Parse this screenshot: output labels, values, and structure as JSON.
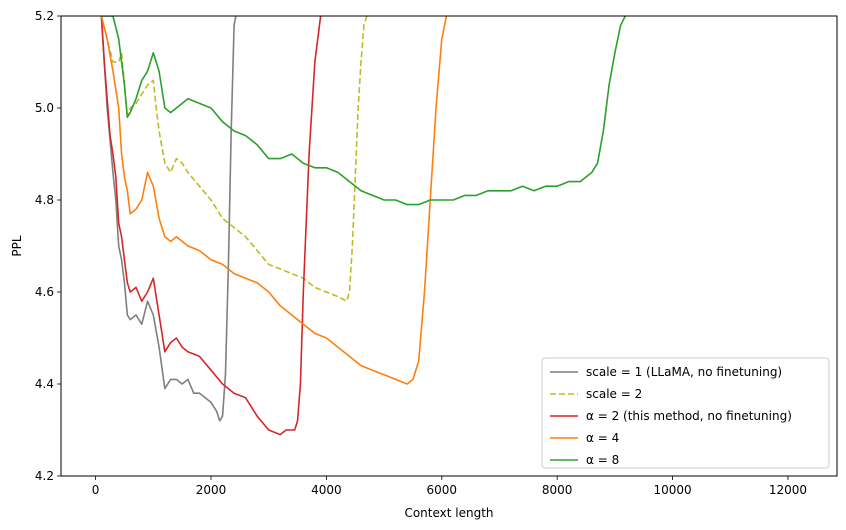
{
  "chart_data": {
    "type": "line",
    "title": "",
    "xlabel": "Context length",
    "ylabel": "PPL",
    "xlim": [
      -600,
      12850
    ],
    "ylim": [
      4.2,
      5.2
    ],
    "xticks": [
      0,
      2000,
      4000,
      6000,
      8000,
      10000,
      12000
    ],
    "yticks": [
      4.2,
      4.4,
      4.6,
      4.8,
      5.0,
      5.2
    ],
    "xtick_labels": [
      "0",
      "2000",
      "4000",
      "6000",
      "8000",
      "10000",
      "12000"
    ],
    "ytick_labels": [
      "4.2",
      "4.4",
      "4.6",
      "4.8",
      "5.0",
      "5.2"
    ],
    "grid": false,
    "legend_position": "lower-right",
    "series": [
      {
        "name": "scale = 1 (LLaMA, no finetuning)",
        "color": "#7f7f7f",
        "dash": "solid",
        "x": [
          100,
          150,
          200,
          250,
          300,
          350,
          400,
          450,
          500,
          550,
          600,
          700,
          800,
          900,
          1000,
          1100,
          1200,
          1300,
          1400,
          1500,
          1600,
          1700,
          1800,
          1900,
          2000,
          2100,
          2150,
          2200,
          2250,
          2300,
          2350,
          2400,
          2430
        ],
        "y": [
          5.2,
          5.1,
          5.0,
          4.93,
          4.86,
          4.8,
          4.7,
          4.67,
          4.62,
          4.55,
          4.54,
          4.55,
          4.53,
          4.58,
          4.55,
          4.48,
          4.39,
          4.41,
          4.41,
          4.4,
          4.41,
          4.38,
          4.38,
          4.37,
          4.36,
          4.34,
          4.32,
          4.33,
          4.42,
          4.65,
          4.95,
          5.18,
          5.2
        ]
      },
      {
        "name": "scale = 2",
        "color": "#bcbd22",
        "dash": "dashed",
        "x": [
          100,
          200,
          300,
          400,
          450,
          500,
          550,
          600,
          700,
          800,
          900,
          1000,
          1050,
          1100,
          1200,
          1300,
          1400,
          1500,
          1600,
          1800,
          2000,
          2200,
          2400,
          2600,
          2800,
          3000,
          3200,
          3400,
          3600,
          3800,
          4000,
          4200,
          4350,
          4400,
          4450,
          4500,
          4550,
          4600,
          4650,
          4700
        ],
        "y": [
          5.2,
          5.15,
          5.1,
          5.1,
          5.12,
          5.05,
          4.98,
          5.0,
          5.01,
          5.03,
          5.05,
          5.06,
          5.0,
          4.95,
          4.88,
          4.86,
          4.89,
          4.88,
          4.86,
          4.83,
          4.8,
          4.76,
          4.74,
          4.72,
          4.69,
          4.66,
          4.65,
          4.64,
          4.63,
          4.61,
          4.6,
          4.59,
          4.58,
          4.6,
          4.7,
          4.85,
          5.0,
          5.1,
          5.18,
          5.2
        ]
      },
      {
        "name": "α = 2 (this method, no finetuning)",
        "color": "#d62728",
        "dash": "solid",
        "x": [
          100,
          150,
          200,
          250,
          300,
          350,
          400,
          450,
          500,
          550,
          600,
          700,
          800,
          900,
          1000,
          1100,
          1200,
          1300,
          1400,
          1500,
          1600,
          1800,
          2000,
          2200,
          2400,
          2600,
          2800,
          3000,
          3200,
          3300,
          3400,
          3450,
          3500,
          3550,
          3600,
          3700,
          3800,
          3900
        ],
        "y": [
          5.2,
          5.1,
          5.02,
          4.94,
          4.9,
          4.85,
          4.75,
          4.72,
          4.67,
          4.62,
          4.6,
          4.61,
          4.58,
          4.6,
          4.63,
          4.55,
          4.47,
          4.49,
          4.5,
          4.48,
          4.47,
          4.46,
          4.43,
          4.4,
          4.38,
          4.37,
          4.33,
          4.3,
          4.29,
          4.3,
          4.3,
          4.3,
          4.32,
          4.4,
          4.6,
          4.9,
          5.1,
          5.2
        ]
      },
      {
        "name": "α = 4",
        "color": "#ff7f0e",
        "dash": "solid",
        "x": [
          100,
          200,
          300,
          400,
          450,
          500,
          550,
          600,
          700,
          800,
          900,
          1000,
          1100,
          1200,
          1300,
          1400,
          1500,
          1600,
          1800,
          2000,
          2200,
          2400,
          2600,
          2800,
          3000,
          3200,
          3400,
          3600,
          3800,
          4000,
          4200,
          4400,
          4600,
          4800,
          5000,
          5200,
          5400,
          5500,
          5600,
          5700,
          5800,
          5900,
          6000,
          6080
        ],
        "y": [
          5.2,
          5.15,
          5.08,
          5.0,
          4.9,
          4.85,
          4.82,
          4.77,
          4.78,
          4.8,
          4.86,
          4.83,
          4.76,
          4.72,
          4.71,
          4.72,
          4.71,
          4.7,
          4.69,
          4.67,
          4.66,
          4.64,
          4.63,
          4.62,
          4.6,
          4.57,
          4.55,
          4.53,
          4.51,
          4.5,
          4.48,
          4.46,
          4.44,
          4.43,
          4.42,
          4.41,
          4.4,
          4.41,
          4.45,
          4.6,
          4.8,
          5.0,
          5.15,
          5.2
        ]
      },
      {
        "name": "α = 8",
        "color": "#2ca02c",
        "dash": "solid",
        "x": [
          100,
          200,
          300,
          400,
          450,
          500,
          550,
          600,
          700,
          800,
          900,
          1000,
          1100,
          1200,
          1300,
          1400,
          1600,
          1800,
          2000,
          2200,
          2400,
          2600,
          2800,
          3000,
          3200,
          3400,
          3600,
          3800,
          4000,
          4200,
          4400,
          4600,
          4800,
          5000,
          5200,
          5400,
          5600,
          5800,
          6000,
          6200,
          6400,
          6600,
          6800,
          7000,
          7200,
          7400,
          7600,
          7800,
          8000,
          8200,
          8400,
          8500,
          8600,
          8700,
          8800,
          8900,
          9000,
          9100,
          9180
        ],
        "y": [
          5.2,
          5.2,
          5.2,
          5.15,
          5.1,
          5.05,
          4.98,
          4.99,
          5.02,
          5.06,
          5.08,
          5.12,
          5.08,
          5.0,
          4.99,
          5.0,
          5.02,
          5.01,
          5.0,
          4.97,
          4.95,
          4.94,
          4.92,
          4.89,
          4.89,
          4.9,
          4.88,
          4.87,
          4.87,
          4.86,
          4.84,
          4.82,
          4.81,
          4.8,
          4.8,
          4.79,
          4.79,
          4.8,
          4.8,
          4.8,
          4.81,
          4.81,
          4.82,
          4.82,
          4.82,
          4.83,
          4.82,
          4.83,
          4.83,
          4.84,
          4.84,
          4.85,
          4.86,
          4.88,
          4.95,
          5.05,
          5.12,
          5.18,
          5.2
        ]
      }
    ]
  }
}
